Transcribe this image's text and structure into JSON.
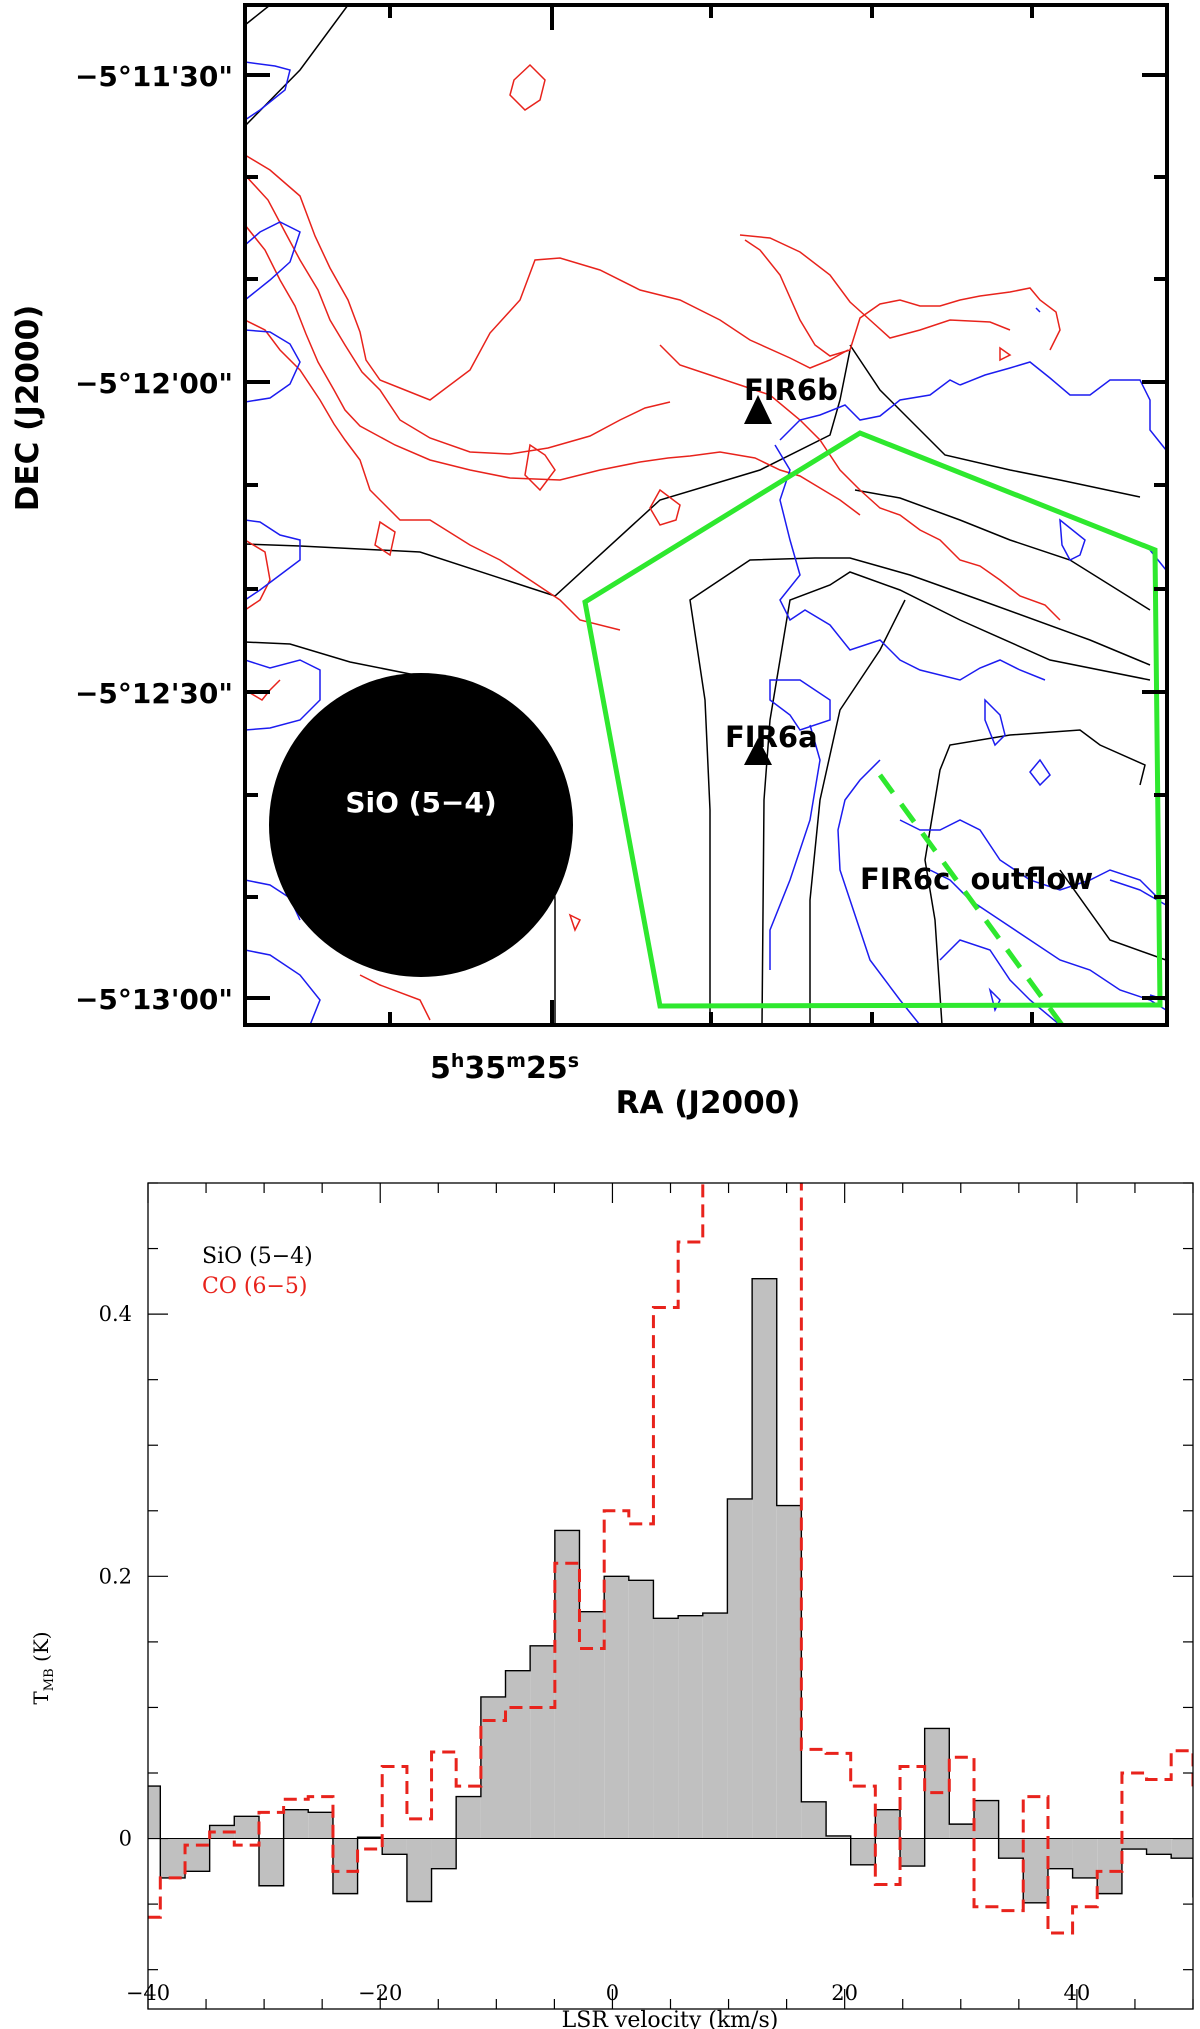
{
  "chart_data": [
    {
      "type": "contour_map",
      "xlabel": "RA (J2000)",
      "ylabel": "DEC (J2000)",
      "x_tick_labels": [
        {
          "h": "5",
          "m": "35",
          "s": "25"
        }
      ],
      "y_tick_labels": [
        "−5°11'30\"",
        "−5°12'00\"",
        "−5°12'30\"",
        "−5°13'00\""
      ],
      "annotations": {
        "beam_label": "SiO (5−4)",
        "source_a": "FIR6a",
        "source_b": "FIR6b",
        "outflow_label": "FIR6c  outflow"
      },
      "colors": {
        "red_contours": "#e8231c",
        "blue_contours": "#1c1cf0",
        "black_contours": "#000000",
        "polygon": "#2ee82e"
      }
    },
    {
      "type": "step",
      "xlabel": "LSR velocity (km/s)",
      "ylabel_main": "T",
      "ylabel_sub": "MB",
      "ylabel_unit": "(K)",
      "xlim": [
        -40,
        50
      ],
      "ylim": [
        -0.13,
        0.5
      ],
      "x_ticks": [
        -40,
        -20,
        0,
        20,
        40
      ],
      "x_tick_labels": [
        "−40",
        "−20",
        "0",
        "20",
        "40"
      ],
      "y_ticks": [
        0,
        0.2,
        0.4
      ],
      "y_tick_labels": [
        "0",
        "0.2",
        "0.4"
      ],
      "legend_position": "top-left",
      "series": [
        {
          "name": "SiO (5−4)",
          "color": "#000000",
          "fill": "#c0c0c0",
          "style": "solid-filled",
          "x": [
            -40.0,
            -38.94,
            -36.81,
            -34.69,
            -32.57,
            -30.44,
            -28.32,
            -26.2,
            -24.07,
            -21.95,
            -19.83,
            -17.7,
            -15.58,
            -13.46,
            -11.33,
            -9.21,
            -7.09,
            -4.96,
            -2.84,
            -0.71,
            1.41,
            3.53,
            5.66,
            7.78,
            9.9,
            12.03,
            14.15,
            16.27,
            18.4,
            20.52,
            22.64,
            24.77,
            26.89,
            29.01,
            31.14,
            33.26,
            35.38,
            37.51,
            39.63,
            41.75,
            43.88,
            46.0,
            48.12,
            50.0
          ],
          "values": [
            0.04,
            -0.03,
            -0.025,
            0.01,
            0.017,
            -0.036,
            0.022,
            0.02,
            -0.042,
            0.001,
            -0.012,
            -0.048,
            -0.023,
            0.032,
            0.108,
            0.128,
            0.147,
            0.235,
            0.173,
            0.2,
            0.197,
            0.168,
            0.17,
            0.172,
            0.259,
            0.427,
            0.254,
            0.028,
            0.002,
            -0.02,
            0.022,
            -0.021,
            0.084,
            0.011,
            0.029,
            -0.015,
            -0.049,
            -0.023,
            -0.03,
            -0.042,
            -0.008,
            -0.012,
            -0.015,
            -0.045
          ]
        },
        {
          "name": "CO (6−5)",
          "color": "#e8231c",
          "style": "dashed",
          "x": [
            -40.0,
            -38.94,
            -36.81,
            -34.69,
            -32.57,
            -30.44,
            -28.32,
            -26.2,
            -24.07,
            -21.95,
            -19.83,
            -17.7,
            -15.58,
            -13.46,
            -11.33,
            -9.21,
            -7.09,
            -4.96,
            -2.84,
            -0.71,
            1.41,
            3.53,
            5.66,
            7.78,
            9.9,
            12.03,
            14.15,
            16.27,
            18.4,
            20.52,
            22.64,
            24.77,
            26.89,
            29.01,
            31.14,
            33.26,
            35.38,
            37.51,
            39.63,
            41.75,
            43.88,
            46.0,
            48.12,
            50.0
          ],
          "values": [
            -0.06,
            -0.03,
            -0.005,
            0.005,
            -0.005,
            0.02,
            0.03,
            0.032,
            -0.025,
            -0.008,
            0.055,
            0.015,
            0.066,
            0.04,
            0.09,
            0.1,
            0.1,
            0.21,
            0.145,
            0.25,
            0.24,
            0.405,
            0.455,
            0.52,
            0.52,
            0.52,
            0.52,
            0.068,
            0.065,
            0.04,
            -0.035,
            0.055,
            0.035,
            0.062,
            -0.052,
            -0.055,
            0.032,
            -0.072,
            -0.052,
            -0.025,
            0.05,
            0.045,
            0.067,
            0.035
          ]
        }
      ]
    }
  ]
}
